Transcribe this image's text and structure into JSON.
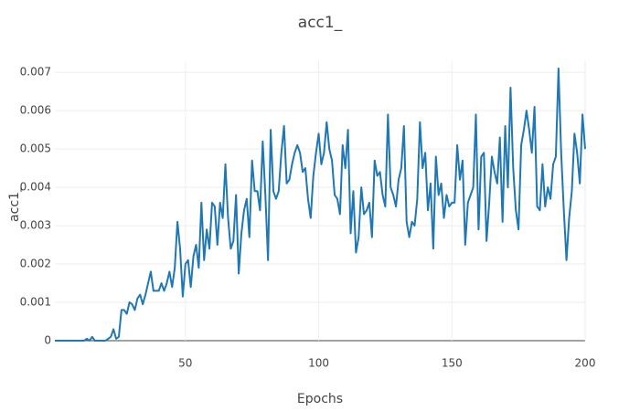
{
  "chart_data": {
    "type": "line",
    "title": "acc1_",
    "x_label": "Epochs",
    "y_label": "acc1_",
    "color": "#1f77b4",
    "grid": true,
    "xlim": [
      1,
      200
    ],
    "xticks": [
      50,
      100,
      150,
      200
    ],
    "ylim": [
      0,
      0.00729
    ],
    "yticks": [
      0,
      0.001,
      0.002,
      0.003,
      0.004,
      0.005,
      0.006,
      0.007
    ],
    "x": [
      1,
      2,
      3,
      4,
      5,
      6,
      7,
      8,
      9,
      10,
      11,
      12,
      13,
      14,
      15,
      16,
      17,
      18,
      19,
      20,
      21,
      22,
      23,
      24,
      25,
      26,
      27,
      28,
      29,
      30,
      31,
      32,
      33,
      34,
      35,
      36,
      37,
      38,
      39,
      40,
      41,
      42,
      43,
      44,
      45,
      46,
      47,
      48,
      49,
      50,
      51,
      52,
      53,
      54,
      55,
      56,
      57,
      58,
      59,
      60,
      61,
      62,
      63,
      64,
      65,
      66,
      67,
      68,
      69,
      70,
      71,
      72,
      73,
      74,
      75,
      76,
      77,
      78,
      79,
      80,
      81,
      82,
      83,
      84,
      85,
      86,
      87,
      88,
      89,
      90,
      91,
      92,
      93,
      94,
      95,
      96,
      97,
      98,
      99,
      100,
      101,
      102,
      103,
      104,
      105,
      106,
      107,
      108,
      109,
      110,
      111,
      112,
      113,
      114,
      115,
      116,
      117,
      118,
      119,
      120,
      121,
      122,
      123,
      124,
      125,
      126,
      127,
      128,
      129,
      130,
      131,
      132,
      133,
      134,
      135,
      136,
      137,
      138,
      139,
      140,
      141,
      142,
      143,
      144,
      145,
      146,
      147,
      148,
      149,
      150,
      151,
      152,
      153,
      154,
      155,
      156,
      157,
      158,
      159,
      160,
      161,
      162,
      163,
      164,
      165,
      166,
      167,
      168,
      169,
      170,
      171,
      172,
      173,
      174,
      175,
      176,
      177,
      178,
      179,
      180,
      181,
      182,
      183,
      184,
      185,
      186,
      187,
      188,
      189,
      190,
      191,
      192,
      193,
      194,
      195,
      196,
      197,
      198,
      199,
      200
    ],
    "values": [
      0,
      0,
      0,
      0,
      0,
      0,
      0,
      0,
      0,
      0,
      0,
      0,
      5e-05,
      0,
      0.0001,
      0,
      0,
      0,
      0,
      0,
      5e-05,
      0.0001,
      0.0003,
      5e-05,
      0.0001,
      0.0008,
      0.0008,
      0.0007,
      0.001,
      0.00095,
      0.0008,
      0.0011,
      0.0012,
      0.00095,
      0.0012,
      0.0015,
      0.0018,
      0.0013,
      0.0013,
      0.0013,
      0.0015,
      0.0013,
      0.0015,
      0.0018,
      0.0014,
      0.0019,
      0.0031,
      0.0024,
      0.00115,
      0.002,
      0.0021,
      0.0014,
      0.0022,
      0.0025,
      0.0019,
      0.0036,
      0.0021,
      0.0029,
      0.0024,
      0.0036,
      0.0035,
      0.0025,
      0.0036,
      0.0032,
      0.0046,
      0.0032,
      0.0024,
      0.0026,
      0.0038,
      0.00175,
      0.0028,
      0.0034,
      0.0037,
      0.0027,
      0.0047,
      0.0039,
      0.0039,
      0.0034,
      0.0052,
      0.0038,
      0.0021,
      0.0055,
      0.0039,
      0.0037,
      0.0039,
      0.0049,
      0.0056,
      0.0041,
      0.0042,
      0.0046,
      0.0049,
      0.0051,
      0.0049,
      0.0044,
      0.0045,
      0.0037,
      0.0032,
      0.0043,
      0.0049,
      0.0054,
      0.0046,
      0.0049,
      0.0057,
      0.005,
      0.0047,
      0.0038,
      0.0037,
      0.0033,
      0.0051,
      0.0045,
      0.0055,
      0.0028,
      0.0039,
      0.0023,
      0.0027,
      0.004,
      0.0033,
      0.0034,
      0.0036,
      0.0027,
      0.0047,
      0.0043,
      0.0044,
      0.0038,
      0.0035,
      0.0059,
      0.004,
      0.0038,
      0.0035,
      0.0042,
      0.0045,
      0.0056,
      0.0031,
      0.0027,
      0.0031,
      0.003,
      0.0037,
      0.0057,
      0.0045,
      0.0049,
      0.0034,
      0.0041,
      0.0024,
      0.0048,
      0.0038,
      0.0041,
      0.0032,
      0.0038,
      0.0035,
      0.0036,
      0.0036,
      0.0051,
      0.0042,
      0.0047,
      0.0025,
      0.0036,
      0.0038,
      0.004,
      0.0059,
      0.0029,
      0.0048,
      0.0049,
      0.0026,
      0.0036,
      0.0048,
      0.0044,
      0.0041,
      0.0053,
      0.0031,
      0.0056,
      0.004,
      0.0066,
      0.0045,
      0.0034,
      0.0029,
      0.0051,
      0.0055,
      0.006,
      0.0055,
      0.0049,
      0.0061,
      0.0035,
      0.0034,
      0.0046,
      0.0035,
      0.004,
      0.0037,
      0.0046,
      0.0048,
      0.0071,
      0.0049,
      0.0034,
      0.0021,
      0.0032,
      0.0039,
      0.0054,
      0.0049,
      0.0041,
      0.0059,
      0.005
    ]
  }
}
